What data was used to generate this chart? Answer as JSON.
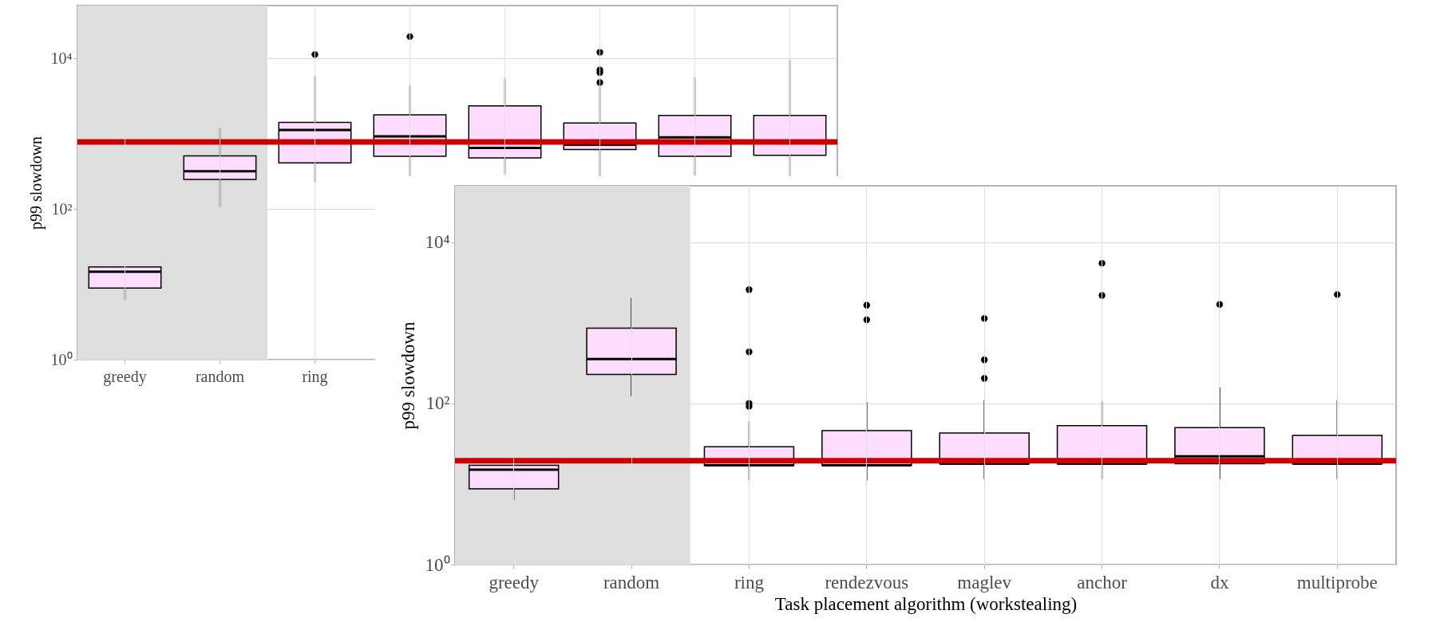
{
  "chart_data": [
    {
      "type": "box",
      "ylabel": "p99 slowdown",
      "categories": [
        "greedy",
        "random",
        "ring",
        null,
        null,
        null,
        null,
        null
      ],
      "color": "#fddcfd",
      "log": true,
      "ylim": [
        1,
        50000
      ],
      "yticks": [
        {
          "value": 1,
          "label": "10⁰"
        },
        {
          "value": 100,
          "label": "10²"
        },
        {
          "value": 10000,
          "label": "10⁴"
        }
      ],
      "grid": true,
      "boxes": [
        {
          "low": 6.2,
          "q1": 8.9,
          "median": 14.7,
          "q3": 17,
          "high": 17
        },
        {
          "low": 105,
          "q1": 247,
          "median": 316,
          "q3": 505,
          "high": 1200
        },
        {
          "low": 229,
          "q1": 408,
          "median": 1120,
          "q3": 1410,
          "high": 5760,
          "outliers": [
            11200
          ]
        },
        {
          "low": 260,
          "q1": 500,
          "median": 920,
          "q3": 1770,
          "high": 4370,
          "outliers": [
            19400
          ]
        },
        {
          "low": 288,
          "q1": 475,
          "median": 645,
          "q3": 2330,
          "high": 5400
        },
        {
          "low": 260,
          "q1": 615,
          "median": 710,
          "q3": 1380,
          "high": 4200,
          "outliers": [
            12000,
            7000,
            6450,
            4760
          ]
        },
        {
          "low": 277,
          "q1": 500,
          "median": 890,
          "q3": 1740,
          "high": 5600
        },
        {
          "low": 262,
          "q1": 515,
          "median": 795,
          "q3": 1740,
          "high": 9500
        }
      ],
      "bands": [
        {
          "axis": "x",
          "from": "greedy",
          "to": "random",
          "color": "#dedede"
        }
      ],
      "ref_lines": [
        {
          "axis": "y",
          "value": 775,
          "color": "#cc0000"
        }
      ]
    },
    {
      "type": "box",
      "xlabel": "Task placement algorithm (workstealing)",
      "ylabel": "p99 slowdown",
      "categories": [
        "greedy",
        "random",
        "ring",
        "rendezvous",
        "maglev",
        "anchor",
        "dx",
        "multiprobe"
      ],
      "color": "#fddcfd",
      "log": true,
      "ylim": [
        1,
        50000
      ],
      "yticks": [
        {
          "value": 1,
          "label": "10⁰"
        },
        {
          "value": 100,
          "label": "10²"
        },
        {
          "value": 10000,
          "label": "10⁴"
        }
      ],
      "grid": true,
      "boxes": [
        {
          "low": 6.3,
          "q1": 8.7,
          "median": 15,
          "q3": 17,
          "high": 17
        },
        {
          "low": 123,
          "q1": 229,
          "median": 354,
          "q3": 855,
          "high": 2040
        },
        {
          "low": 11,
          "q1": 17,
          "median": 17,
          "q3": 29,
          "high": 60,
          "outliers": [
            2570,
            435,
            100,
            92
          ]
        },
        {
          "low": 11,
          "q1": 17,
          "median": 17,
          "q3": 46,
          "high": 105,
          "outliers": [
            1650,
            1090
          ]
        },
        {
          "low": 11.5,
          "q1": 17.8,
          "median": 17.8,
          "q3": 43,
          "high": 109,
          "outliers": [
            1130,
            347,
            204
          ]
        },
        {
          "low": 11.5,
          "q1": 17.8,
          "median": 17.8,
          "q3": 53,
          "high": 106,
          "outliers": [
            5470,
            2180
          ]
        },
        {
          "low": 11.5,
          "q1": 17.8,
          "median": 22,
          "q3": 50,
          "high": 158,
          "outliers": [
            1690
          ]
        },
        {
          "low": 11.5,
          "q1": 17.8,
          "median": 17.8,
          "q3": 40,
          "high": 109,
          "outliers": [
            2240
          ]
        }
      ],
      "bands": [
        {
          "axis": "x",
          "from": "greedy",
          "to": "random",
          "color": "#dedede"
        }
      ],
      "ref_lines": [
        {
          "axis": "y",
          "value": 19.4,
          "color": "#cc0000"
        }
      ]
    }
  ]
}
